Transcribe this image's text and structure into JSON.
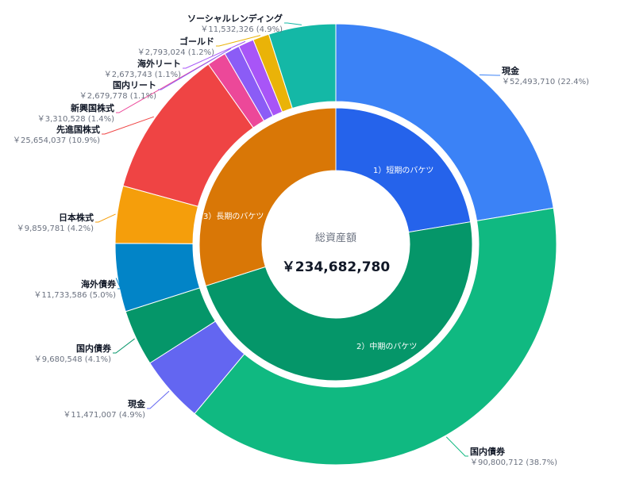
{
  "chart_data": {
    "type": "pie",
    "center": {
      "title": "総資産額",
      "total": "￥234,682,780"
    },
    "inner_ring": [
      {
        "label": "1）短期のバケツ",
        "value": 52493710,
        "color": "#2563eb"
      },
      {
        "label": "2）中期のバケツ",
        "value": 111952267,
        "color": "#059669"
      },
      {
        "label": "3）長期のバケツ",
        "value": 70236803,
        "color": "#d97706"
      }
    ],
    "outer_ring": [
      {
        "name": "現金",
        "value": 52493710,
        "value_text": "￥52,493,710 (22.4%)",
        "color": "#3b82f6"
      },
      {
        "name": "国内債券",
        "value": 90800712,
        "value_text": "￥90,800,712 (38.7%)",
        "color": "#10b981"
      },
      {
        "name": "現金",
        "value": 11471007,
        "value_text": "￥11,471,007 (4.9%)",
        "color": "#6366f1"
      },
      {
        "name": "国内債券",
        "value": 9680548,
        "value_text": "￥9,680,548 (4.1%)",
        "color": "#059669"
      },
      {
        "name": "海外債券",
        "value": 11733586,
        "value_text": "￥11,733,586 (5.0%)",
        "color": "#0284c7"
      },
      {
        "name": "日本株式",
        "value": 9859781,
        "value_text": "￥9,859,781 (4.2%)",
        "color": "#f59e0b"
      },
      {
        "name": "先進国株式",
        "value": 25654037,
        "value_text": "￥25,654,037 (10.9%)",
        "color": "#ef4444"
      },
      {
        "name": "新興国株式",
        "value": 3310528,
        "value_text": "￥3,310,528 (1.4%)",
        "color": "#ec4899"
      },
      {
        "name": "国内リート",
        "value": 2679778,
        "value_text": "￥2,679,778 (1.1%)",
        "color": "#8b5cf6"
      },
      {
        "name": "海外リート",
        "value": 2673743,
        "value_text": "￥2,673,743 (1.1%)",
        "color": "#a855f7"
      },
      {
        "name": "ゴールド",
        "value": 2793024,
        "value_text": "￥2,793,024 (1.2%)",
        "color": "#eab308"
      },
      {
        "name": "ソーシャルレンディング",
        "value": 11532326,
        "value_text": "￥11,532,326 (4.9%)",
        "color": "#14b8a6"
      }
    ]
  }
}
